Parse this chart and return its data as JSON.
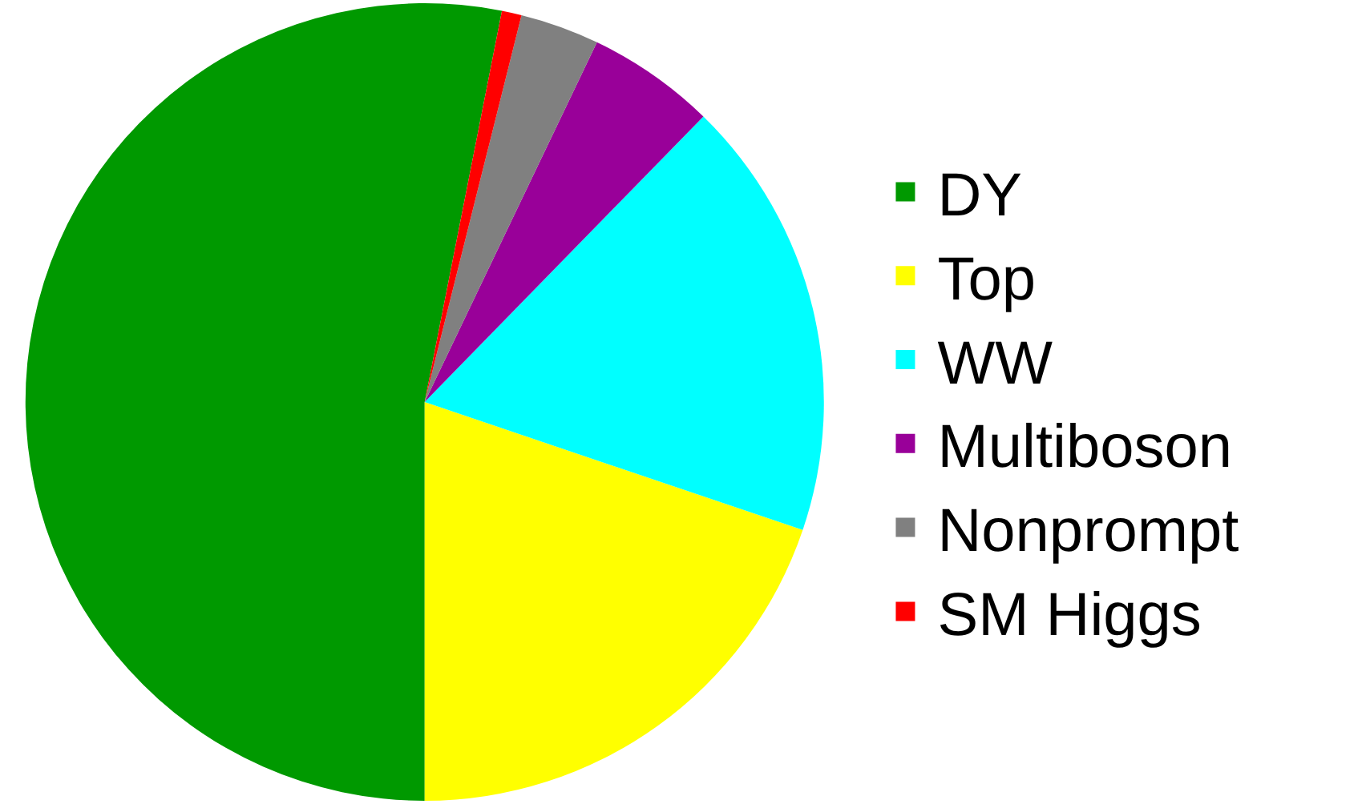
{
  "chart_data": {
    "type": "pie",
    "categories": [
      "DY",
      "Top",
      "WW",
      "Multiboson",
      "Nonprompt",
      "SM Higgs"
    ],
    "values": [
      53.1,
      19.8,
      17.9,
      5.2,
      3.2,
      0.8
    ],
    "colors": [
      "#009900",
      "#ffff00",
      "#00ffff",
      "#990099",
      "#808080",
      "#ff0000"
    ],
    "legend": "right"
  }
}
